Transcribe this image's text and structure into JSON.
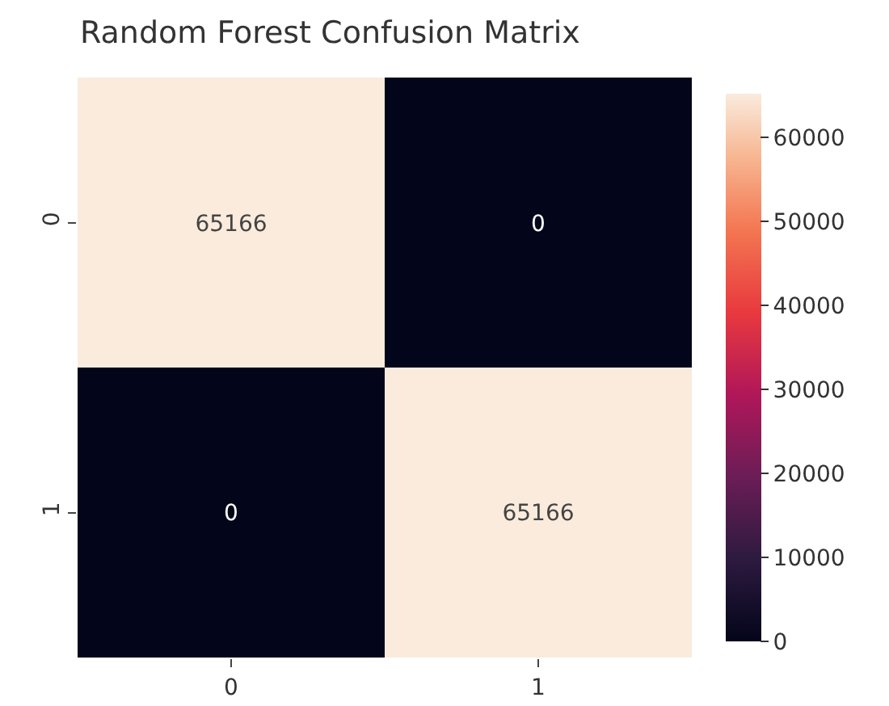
{
  "chart_data": {
    "type": "heatmap",
    "title": "Random Forest Confusion Matrix",
    "categories": [
      "0",
      "1"
    ],
    "y_categories": [
      "0",
      "1"
    ],
    "cells": [
      [
        65166,
        0
      ],
      [
        0,
        65166
      ]
    ],
    "data_labels": true,
    "clim": [
      0,
      65166
    ],
    "cticks": [
      0,
      10000,
      20000,
      30000,
      40000,
      50000,
      60000
    ]
  }
}
